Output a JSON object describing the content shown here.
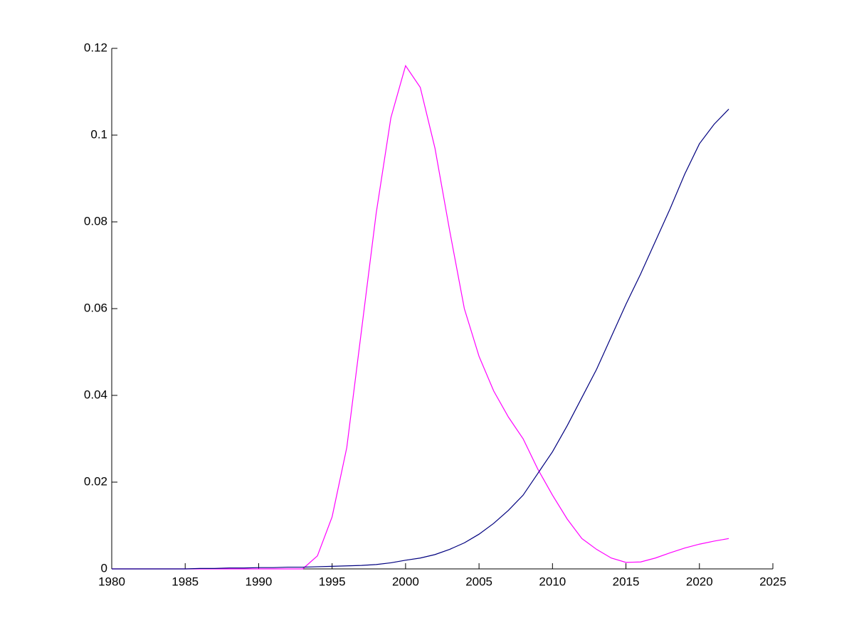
{
  "chart_data": {
    "type": "line",
    "x": [
      1980,
      1981,
      1982,
      1983,
      1984,
      1985,
      1986,
      1987,
      1988,
      1989,
      1990,
      1991,
      1992,
      1993,
      1994,
      1995,
      1996,
      1997,
      1998,
      1999,
      2000,
      2001,
      2002,
      2003,
      2004,
      2005,
      2006,
      2007,
      2008,
      2009,
      2010,
      2011,
      2012,
      2013,
      2014,
      2015,
      2016,
      2017,
      2018,
      2019,
      2020,
      2021,
      2022
    ],
    "series": [
      {
        "color": "#ff00ff",
        "values": [
          0,
          0,
          0,
          0,
          0,
          0,
          0,
          0,
          0,
          0,
          0,
          0,
          0,
          0,
          0.003,
          0.012,
          0.028,
          0.055,
          0.082,
          0.104,
          0.116,
          0.111,
          0.097,
          0.078,
          0.06,
          0.049,
          0.041,
          0.035,
          0.03,
          0.023,
          0.017,
          0.0115,
          0.007,
          0.0045,
          0.0025,
          0.0015,
          0.0016,
          0.0025,
          0.0037,
          0.0048,
          0.0057,
          0.0064,
          0.007
        ]
      },
      {
        "color": "#00007f",
        "values": [
          0,
          0,
          0,
          0,
          0,
          0,
          0.0001,
          0.0001,
          0.0002,
          0.0002,
          0.0003,
          0.0003,
          0.0004,
          0.0004,
          0.0005,
          0.0006,
          0.0007,
          0.0008,
          0.001,
          0.0014,
          0.002,
          0.0025,
          0.0033,
          0.0045,
          0.006,
          0.008,
          0.0105,
          0.0135,
          0.017,
          0.022,
          0.027,
          0.033,
          0.0395,
          0.046,
          0.0535,
          0.061,
          0.068,
          0.0755,
          0.083,
          0.091,
          0.098,
          0.1025,
          0.106
        ]
      }
    ],
    "xlim": [
      1980,
      2025
    ],
    "xticks": [
      1980,
      1985,
      1990,
      1995,
      2000,
      2005,
      2010,
      2015,
      2020,
      2025
    ],
    "ylim": [
      0,
      0.12
    ],
    "yticks": [
      0,
      0.02,
      0.04,
      0.06,
      0.08,
      0.1,
      0.12
    ]
  }
}
